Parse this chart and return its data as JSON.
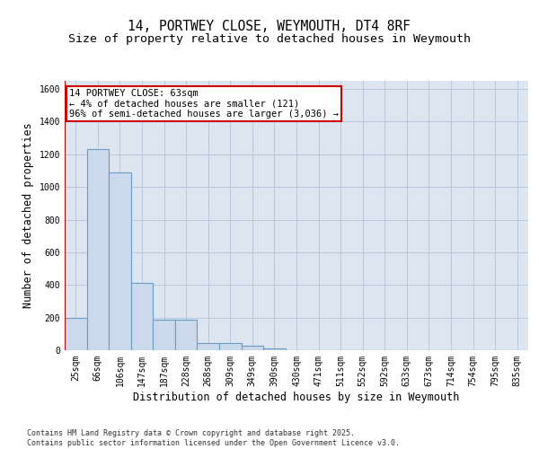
{
  "title_line1": "14, PORTWEY CLOSE, WEYMOUTH, DT4 8RF",
  "title_line2": "Size of property relative to detached houses in Weymouth",
  "xlabel": "Distribution of detached houses by size in Weymouth",
  "ylabel": "Number of detached properties",
  "categories": [
    "25sqm",
    "66sqm",
    "106sqm",
    "147sqm",
    "187sqm",
    "228sqm",
    "268sqm",
    "309sqm",
    "349sqm",
    "390sqm",
    "430sqm",
    "471sqm",
    "511sqm",
    "552sqm",
    "592sqm",
    "633sqm",
    "673sqm",
    "714sqm",
    "754sqm",
    "795sqm",
    "835sqm"
  ],
  "values": [
    200,
    1230,
    1090,
    415,
    185,
    185,
    45,
    45,
    25,
    10,
    0,
    0,
    0,
    0,
    0,
    0,
    0,
    0,
    0,
    0,
    0
  ],
  "bar_color": "#ccd9ed",
  "bar_edge_color": "#6a9cc8",
  "grid_color": "#b8c8dc",
  "background_color": "#dce5f0",
  "annotation_text": "14 PORTWEY CLOSE: 63sqm\n← 4% of detached houses are smaller (121)\n96% of semi-detached houses are larger (3,036) →",
  "annotation_box_color": "#ffffff",
  "annotation_edge_color": "#cc0000",
  "red_line_color": "#cc0000",
  "ylim": [
    0,
    1650
  ],
  "yticks": [
    0,
    200,
    400,
    600,
    800,
    1000,
    1200,
    1400,
    1600
  ],
  "footer_line1": "Contains HM Land Registry data © Crown copyright and database right 2025.",
  "footer_line2": "Contains public sector information licensed under the Open Government Licence v3.0.",
  "title_fontsize": 10.5,
  "subtitle_fontsize": 9.5,
  "tick_fontsize": 7,
  "label_fontsize": 8.5,
  "annotation_fontsize": 7.5,
  "footer_fontsize": 6
}
